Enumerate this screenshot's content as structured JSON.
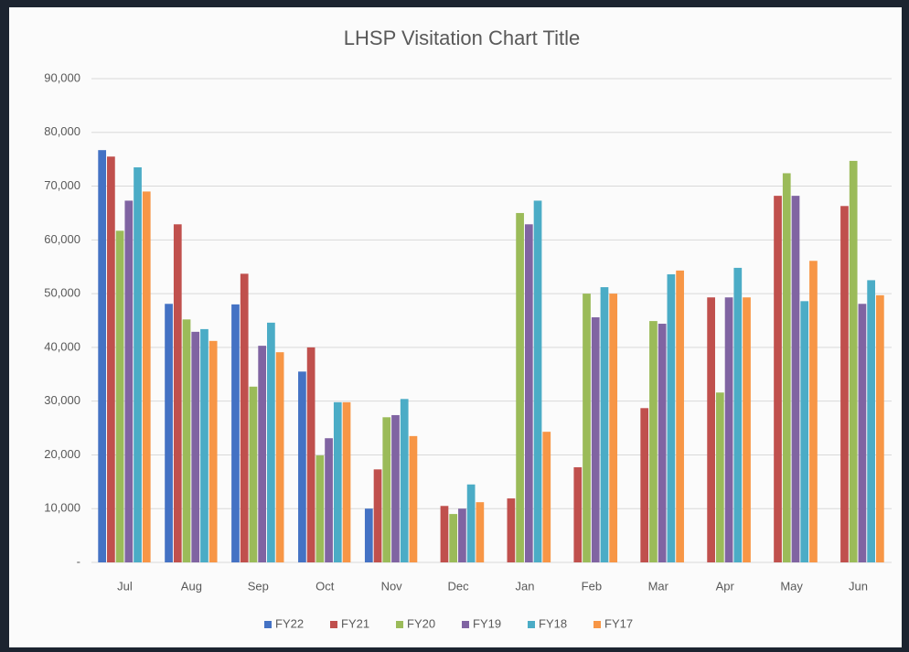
{
  "chart_data": {
    "type": "bar",
    "title": "LHSP Visitation Chart Title",
    "categories": [
      "Jul",
      "Aug",
      "Sep",
      "Oct",
      "Nov",
      "Dec",
      "Jan",
      "Feb",
      "Mar",
      "Apr",
      "May",
      "Jun"
    ],
    "series": [
      {
        "name": "FY22",
        "color": "#4472c4",
        "values": [
          76700,
          48100,
          48000,
          35500,
          10000,
          null,
          null,
          null,
          null,
          null,
          null,
          null
        ]
      },
      {
        "name": "FY21",
        "color": "#c0504d",
        "values": [
          75500,
          62900,
          53700,
          40000,
          17300,
          10500,
          11900,
          17700,
          28700,
          49300,
          68200,
          66300
        ]
      },
      {
        "name": "FY20",
        "color": "#9bbb59",
        "values": [
          61700,
          45200,
          32700,
          19900,
          27000,
          9000,
          65000,
          50000,
          44900,
          31600,
          72400,
          74700
        ]
      },
      {
        "name": "FY19",
        "color": "#8064a2",
        "values": [
          67300,
          42900,
          40300,
          23100,
          27400,
          10000,
          62900,
          45600,
          44400,
          49300,
          68200,
          48100
        ]
      },
      {
        "name": "FY18",
        "color": "#4bacc6",
        "values": [
          73500,
          43400,
          44600,
          29800,
          30400,
          14500,
          67300,
          51200,
          53600,
          54800,
          48600,
          52500
        ]
      },
      {
        "name": "FY17",
        "color": "#f79646",
        "values": [
          69000,
          41200,
          39100,
          29800,
          23500,
          11200,
          24300,
          50000,
          54300,
          49300,
          56100,
          49700
        ]
      }
    ],
    "ylim": [
      0,
      90000
    ],
    "yticks": [
      {
        "value": 0,
        "label": "-"
      },
      {
        "value": 10000,
        "label": "10,000"
      },
      {
        "value": 20000,
        "label": "20,000"
      },
      {
        "value": 30000,
        "label": "30,000"
      },
      {
        "value": 40000,
        "label": "40,000"
      },
      {
        "value": 50000,
        "label": "50,000"
      },
      {
        "value": 60000,
        "label": "60,000"
      },
      {
        "value": 70000,
        "label": "70,000"
      },
      {
        "value": 80000,
        "label": "80,000"
      },
      {
        "value": 90000,
        "label": "90,000"
      }
    ],
    "grid": true,
    "legend": "bottom"
  }
}
